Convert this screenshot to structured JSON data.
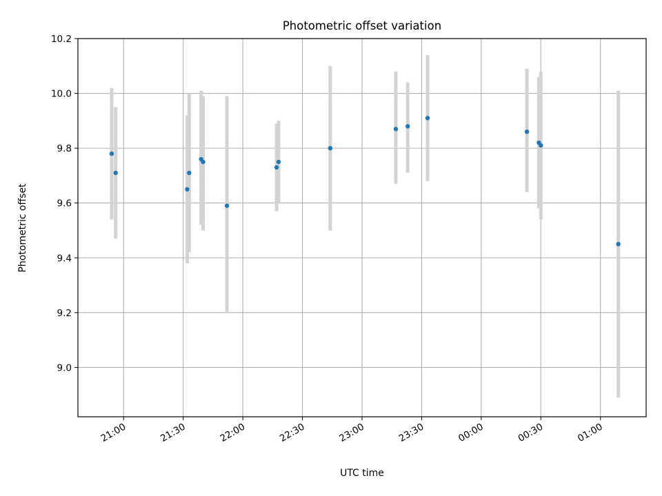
{
  "chart_data": {
    "type": "scatter",
    "title": "Photometric offset variation",
    "xlabel": "UTC time",
    "ylabel": "Photometric offset",
    "x_ticks": [
      "21:00",
      "21:30",
      "22:00",
      "22:30",
      "23:00",
      "23:30",
      "00:00",
      "00:30",
      "01:00"
    ],
    "y_ticks": [
      "9.0",
      "9.2",
      "9.4",
      "9.6",
      "9.8",
      "10.0",
      "10.2"
    ],
    "ylim": [
      8.82,
      10.2
    ],
    "xlim": [
      "20:37",
      "01:23"
    ],
    "grid": true,
    "colors": {
      "point": "#1f77b4",
      "errorbar": "#d3d3d3",
      "grid": "#b0b0b0"
    },
    "points": [
      {
        "x": "20:54",
        "y": 9.78,
        "y_low": 9.54,
        "y_high": 10.02
      },
      {
        "x": "20:56",
        "y": 9.71,
        "y_low": 9.47,
        "y_high": 9.95
      },
      {
        "x": "21:32",
        "y": 9.65,
        "y_low": 9.38,
        "y_high": 9.92
      },
      {
        "x": "21:33",
        "y": 9.71,
        "y_low": 9.42,
        "y_high": 10.0
      },
      {
        "x": "21:39",
        "y": 9.76,
        "y_low": 9.52,
        "y_high": 10.01
      },
      {
        "x": "21:40",
        "y": 9.75,
        "y_low": 9.5,
        "y_high": 9.99
      },
      {
        "x": "21:52",
        "y": 9.59,
        "y_low": 9.2,
        "y_high": 9.99
      },
      {
        "x": "22:17",
        "y": 9.73,
        "y_low": 9.57,
        "y_high": 9.89
      },
      {
        "x": "22:18",
        "y": 9.75,
        "y_low": 9.6,
        "y_high": 9.9
      },
      {
        "x": "22:44",
        "y": 9.8,
        "y_low": 9.5,
        "y_high": 10.1
      },
      {
        "x": "23:17",
        "y": 9.87,
        "y_low": 9.67,
        "y_high": 10.08
      },
      {
        "x": "23:23",
        "y": 9.88,
        "y_low": 9.71,
        "y_high": 10.04
      },
      {
        "x": "23:33",
        "y": 9.91,
        "y_low": 9.68,
        "y_high": 10.14
      },
      {
        "x": "00:23",
        "y": 9.86,
        "y_low": 9.64,
        "y_high": 10.09
      },
      {
        "x": "00:29",
        "y": 9.82,
        "y_low": 9.58,
        "y_high": 10.06
      },
      {
        "x": "00:30",
        "y": 9.81,
        "y_low": 9.54,
        "y_high": 10.08
      },
      {
        "x": "01:09",
        "y": 9.45,
        "y_low": 8.89,
        "y_high": 10.01
      }
    ]
  }
}
